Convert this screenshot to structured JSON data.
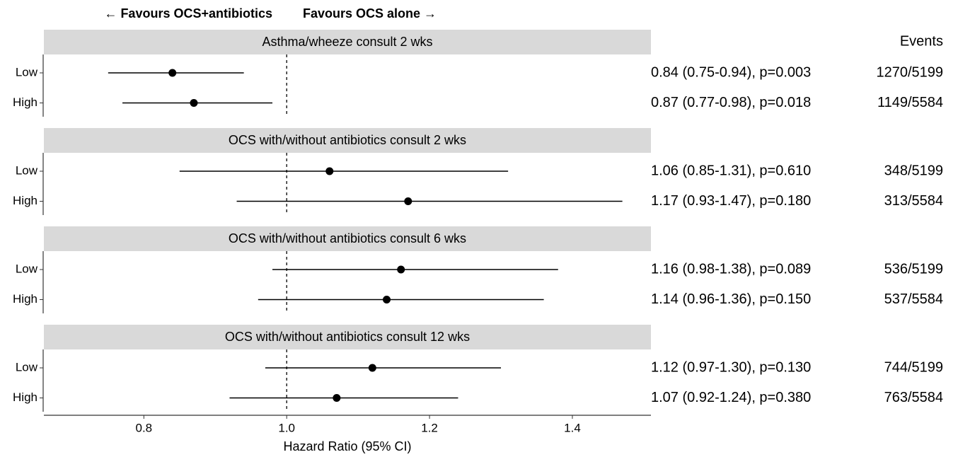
{
  "chart_data": {
    "type": "forest",
    "left_label": "← Favours OCS+antibiotics",
    "right_label": "Favours OCS alone →",
    "events_header": "Events",
    "xlabel": "Hazard Ratio (95% CI)",
    "categories": [
      "Low",
      "High"
    ],
    "reference": 1,
    "xlim": [
      0.66,
      1.51
    ],
    "xticks": [
      0.8,
      {
        "value": 1,
        "label": "1.0"
      },
      1.2,
      1.4
    ],
    "color": "#000000",
    "panels": [
      {
        "title": "Asthma/wheeze consult 2 wks",
        "values": [
          0.84,
          0.87
        ],
        "lower": [
          0.75,
          0.77
        ],
        "upper": [
          0.94,
          0.98
        ],
        "value_labels": [
          "0.84 (0.75-0.94), p=0.003",
          "0.87 (0.77-0.98), p=0.018"
        ],
        "events": [
          "1270/5199",
          "1149/5584"
        ]
      },
      {
        "title": "OCS with/without antibiotics consult 2 wks",
        "values": [
          1.06,
          1.17
        ],
        "lower": [
          0.85,
          0.93
        ],
        "upper": [
          1.31,
          1.47
        ],
        "value_labels": [
          "1.06 (0.85-1.31), p=0.610",
          "1.17 (0.93-1.47), p=0.180"
        ],
        "events": [
          "348/5199",
          "313/5584"
        ]
      },
      {
        "title": "OCS with/without antibiotics consult 6 wks",
        "values": [
          1.16,
          1.14
        ],
        "lower": [
          0.98,
          0.96
        ],
        "upper": [
          1.38,
          1.36
        ],
        "value_labels": [
          "1.16 (0.98-1.38), p=0.089",
          "1.14 (0.96-1.36), p=0.150"
        ],
        "events": [
          "536/5199",
          "537/5584"
        ]
      },
      {
        "title": "OCS with/without antibiotics consult 12 wks",
        "values": [
          1.12,
          1.07
        ],
        "lower": [
          0.97,
          0.92
        ],
        "upper": [
          1.3,
          1.24
        ],
        "value_labels": [
          "1.12 (0.97-1.30), p=0.130",
          "1.07 (0.92-1.24), p=0.380"
        ],
        "events": [
          "744/5199",
          "763/5584"
        ]
      }
    ]
  }
}
